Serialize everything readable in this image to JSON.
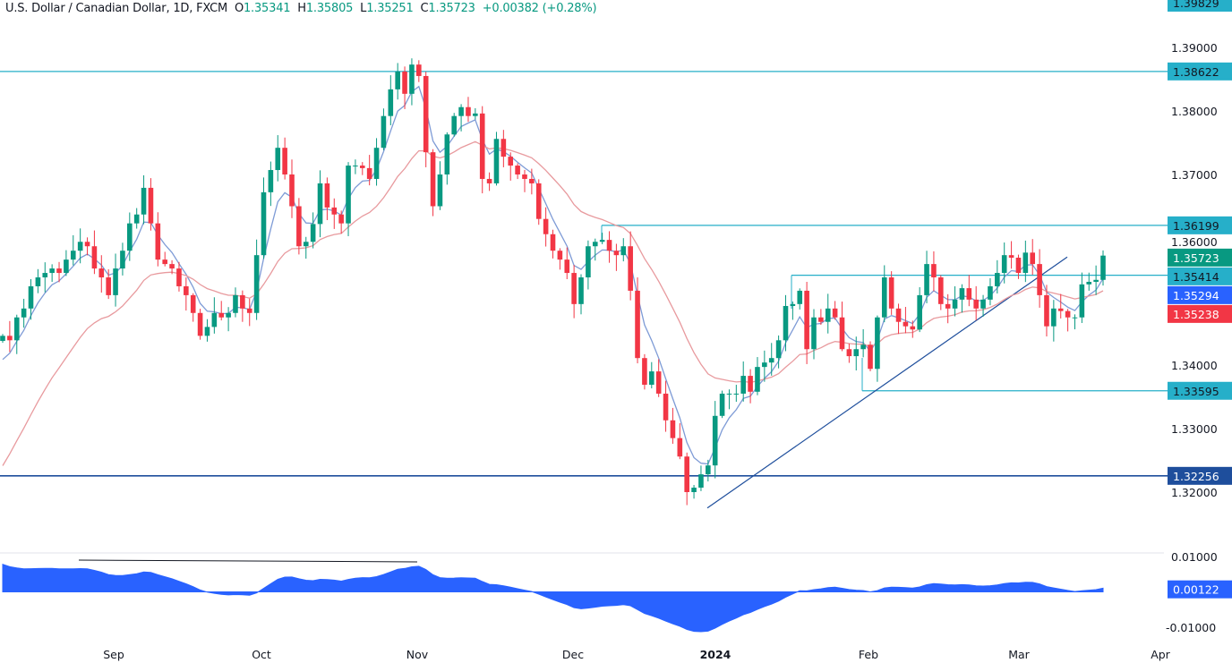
{
  "legend": {
    "symbol": "U.S. Dollar / Canadian Dollar, 1D, FXCM",
    "open_label": "O",
    "open": "1.35341",
    "high_label": "H",
    "high": "1.35805",
    "low_label": "L",
    "low": "1.35251",
    "close_label": "C",
    "close": "1.35723",
    "change": "+0.00382 (+0.28%)"
  },
  "colors": {
    "up": "#089981",
    "down": "#f23645",
    "level_line": "#26afc9",
    "support_line": "#1e4e9c",
    "fast_ma": "#7e9bd6",
    "slow_ma": "#e89a9e",
    "oscillator": "#2962ff",
    "last_price": "#089981",
    "fast_ma_tag": "#2962ff",
    "slow_ma_tag": "#f23645"
  },
  "chart_data": [
    {
      "type": "candlestick",
      "title": "U.S. Dollar / Canadian Dollar, 1D, FXCM",
      "ylim": [
        1.316,
        1.398
      ],
      "y_ticks": [
        "1.39000",
        "1.38000",
        "1.37000",
        "1.36000",
        "1.34000",
        "1.33000",
        "1.32000"
      ],
      "y_top_label": "1.39829",
      "x_ticks": [
        "Sep",
        "Oct",
        "Nov",
        "Dec",
        "2024",
        "Feb",
        "Mar",
        "Apr"
      ],
      "last_bar": {
        "open": 1.35341,
        "high": 1.35805,
        "low": 1.35251,
        "close": 1.35723
      },
      "closes": [
        1.3446,
        1.3439,
        1.3475,
        1.3489,
        1.3524,
        1.3538,
        1.3545,
        1.3552,
        1.3545,
        1.3566,
        1.358,
        1.3594,
        1.3587,
        1.3552,
        1.3538,
        1.351,
        1.3552,
        1.358,
        1.3623,
        1.3637,
        1.3679,
        1.3623,
        1.3566,
        1.3559,
        1.3552,
        1.3524,
        1.351,
        1.3482,
        1.3446,
        1.346,
        1.3482,
        1.3475,
        1.3482,
        1.351,
        1.3489,
        1.3482,
        1.3573,
        1.3672,
        1.3707,
        1.3742,
        1.37,
        1.365,
        1.3587,
        1.3594,
        1.3622,
        1.3686,
        1.3648,
        1.3637,
        1.3623,
        1.3714,
        1.3714,
        1.371,
        1.3693,
        1.3742,
        1.3792,
        1.3834,
        1.3862,
        1.3827,
        1.3873,
        1.3855,
        1.3735,
        1.365,
        1.37,
        1.3763,
        1.3792,
        1.3806,
        1.3792,
        1.3796,
        1.3693,
        1.3686,
        1.3756,
        1.3728,
        1.3714,
        1.37,
        1.3693,
        1.3686,
        1.363,
        1.3606,
        1.358,
        1.3566,
        1.3545,
        1.3496,
        1.3538,
        1.3587,
        1.3594,
        1.3597,
        1.358,
        1.3573,
        1.3587,
        1.3517,
        1.3411,
        1.3369,
        1.339,
        1.3355,
        1.3313,
        1.3285,
        1.3256,
        1.32,
        1.3207,
        1.3228,
        1.3242,
        1.332,
        1.3355,
        1.3355,
        1.3355,
        1.3383,
        1.3358,
        1.3397,
        1.3404,
        1.3411,
        1.3439,
        1.3493,
        1.3496,
        1.3517,
        1.3425,
        1.3475,
        1.3468,
        1.3489,
        1.3475,
        1.3425,
        1.3414,
        1.3425,
        1.3432,
        1.3394,
        1.3475,
        1.3538,
        1.3489,
        1.3468,
        1.3461,
        1.3456,
        1.351,
        1.3559,
        1.3538,
        1.3496,
        1.3489,
        1.3503,
        1.3521,
        1.3503,
        1.3489,
        1.3503,
        1.3524,
        1.3545,
        1.3573,
        1.3569,
        1.3545,
        1.3577,
        1.3559,
        1.351,
        1.3461,
        1.3489,
        1.3485,
        1.3475,
        1.3475,
        1.3527,
        1.3531,
        1.35341,
        1.35723
      ],
      "levels": [
        {
          "value": 1.38622,
          "label": "1.38622",
          "style": "level",
          "from": "start"
        },
        {
          "value": 1.36199,
          "label": "1.36199",
          "style": "level",
          "from": "Dec"
        },
        {
          "value": 1.35414,
          "label": "1.35414",
          "style": "level",
          "from": "Jan"
        },
        {
          "value": 1.33595,
          "label": "1.33595",
          "style": "level",
          "from": "Jan-end"
        },
        {
          "value": 1.32256,
          "label": "1.32256",
          "style": "support",
          "from": "start"
        }
      ],
      "tags": [
        {
          "label": "1.35723",
          "value": 1.35723,
          "color": "last_price"
        },
        {
          "label": "1.35294",
          "value": 1.35294,
          "color": "fast_ma_tag"
        },
        {
          "label": "1.35238",
          "value": 1.35238,
          "color": "slow_ma_tag"
        }
      ],
      "series": [
        {
          "type": "moving-average",
          "color": "fast_ma"
        },
        {
          "type": "moving-average",
          "color": "slow_ma"
        }
      ],
      "trendline": {
        "from_price": 1.3175,
        "to_price": 1.357
      }
    },
    {
      "type": "area",
      "ylim": [
        -0.0125,
        0.0105
      ],
      "y_ticks": [
        "0.01000",
        "-0.01000"
      ],
      "last_value": "0.00122",
      "divergence_line": true
    }
  ]
}
